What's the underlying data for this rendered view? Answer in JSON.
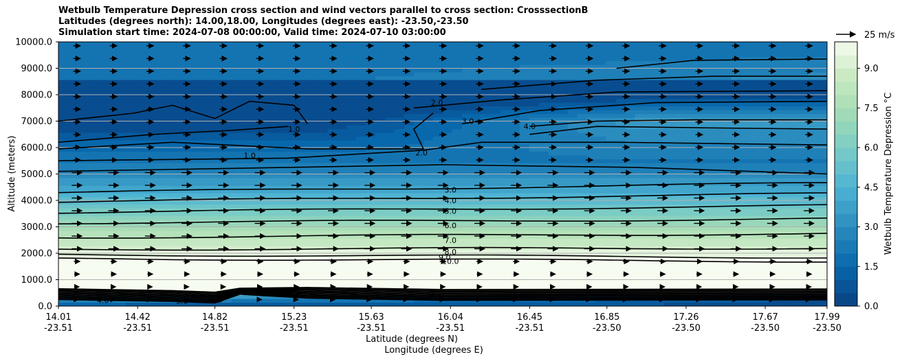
{
  "chart_data": {
    "type": "contour",
    "title_lines": [
      "Wetbulb Temperature Depression cross section and wind vectors parallel to cross section: CrosssectionB",
      "Latitudes (degrees north): 14.00,18.00, Longitudes (degrees east): -23.50,-23.50",
      "Simulation start time: 2024-07-08 00:00:00, Valid time: 2024-07-10 03:00:00"
    ],
    "ylabel": "Altitude (meters)",
    "xlabel_lat": "Latitude (degrees N)",
    "xlabel_lon": "Longitude (degrees E)",
    "ylim": [
      0,
      10000
    ],
    "y_ticks": [
      "0.0",
      "1000.0",
      "2000.0",
      "3000.0",
      "4000.0",
      "5000.0",
      "6000.0",
      "7000.0",
      "8000.0",
      "9000.0",
      "10000.0"
    ],
    "x_ticks": [
      {
        "lat": "14.01",
        "lon": "-23.51"
      },
      {
        "lat": "14.42",
        "lon": "-23.51"
      },
      {
        "lat": "14.82",
        "lon": "-23.51"
      },
      {
        "lat": "15.23",
        "lon": "-23.51"
      },
      {
        "lat": "15.63",
        "lon": "-23.51"
      },
      {
        "lat": "16.04",
        "lon": "-23.51"
      },
      {
        "lat": "16.45",
        "lon": "-23.51"
      },
      {
        "lat": "16.85",
        "lon": "-23.50"
      },
      {
        "lat": "17.26",
        "lon": "-23.50"
      },
      {
        "lat": "17.67",
        "lon": "-23.50"
      },
      {
        "lat": "17.99",
        "lon": "-23.50"
      }
    ],
    "grid": "horizontal",
    "colorbar": {
      "label": "Wetbulb Temperature Depression °C",
      "range": [
        0,
        10
      ],
      "ticks": [
        "0.0",
        "1.5",
        "3.0",
        "4.5",
        "6.0",
        "7.5",
        "9.0"
      ],
      "colormap": "GnBu_r"
    },
    "quiver_key": {
      "label": "25 m/s",
      "speed": 25
    },
    "contour_levels": [
      {
        "value": 1.0,
        "label": "1.0"
      },
      {
        "value": 2.0,
        "label": "2.0"
      },
      {
        "value": 3.0,
        "label": "3.0"
      },
      {
        "value": 4.0,
        "label": "4.0"
      },
      {
        "value": 5.0,
        "label": "5.0"
      },
      {
        "value": 6.0,
        "label": "6.0"
      },
      {
        "value": 7.0,
        "label": "7.0"
      },
      {
        "value": 8.0,
        "label": "8.0"
      },
      {
        "value": 9.0,
        "label": "9.0"
      },
      {
        "value": 10.0,
        "label": "10.0"
      }
    ],
    "contour_label_positions": [
      {
        "label": "2.0",
        "lat": 15.97,
        "alt": 7700
      },
      {
        "label": "3.0",
        "lat": 16.13,
        "alt": 7000
      },
      {
        "label": "4.0",
        "lat": 16.45,
        "alt": 6800
      },
      {
        "label": "1.0",
        "lat": 15.23,
        "alt": 6700
      },
      {
        "label": "1.0",
        "lat": 15.0,
        "alt": 5700
      },
      {
        "label": "2.0",
        "lat": 15.89,
        "alt": 5800
      },
      {
        "label": "3.0",
        "lat": 16.04,
        "alt": 4400
      },
      {
        "label": "4.0",
        "lat": 16.04,
        "alt": 4000
      },
      {
        "label": "5.0",
        "lat": 16.04,
        "alt": 3600
      },
      {
        "label": "6.0",
        "lat": 16.04,
        "alt": 3050
      },
      {
        "label": "7.0",
        "lat": 16.04,
        "alt": 2500
      },
      {
        "label": "8.0",
        "lat": 16.04,
        "alt": 2050
      },
      {
        "label": "9.0",
        "lat": 16.01,
        "alt": 1850
      },
      {
        "label": "10.0",
        "lat": 16.04,
        "alt": 1700
      },
      {
        "label": "10.0",
        "lat": 15.96,
        "alt": 400
      },
      {
        "label": "4.0",
        "lat": 14.24,
        "alt": 220
      },
      {
        "label": "5.0",
        "lat": 14.65,
        "alt": 200
      },
      {
        "label": "6.0",
        "lat": 14.82,
        "alt": 230
      }
    ]
  }
}
